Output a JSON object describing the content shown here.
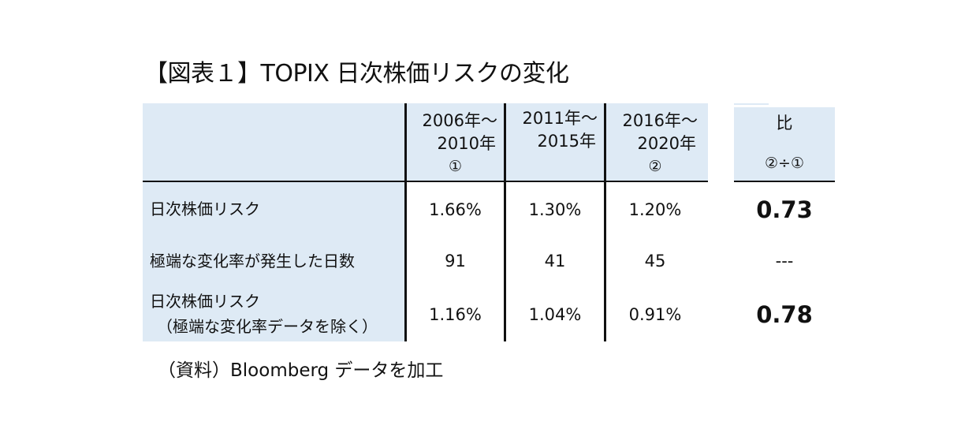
{
  "title": "【図表１】TOPIX 日次株価リスクの変化",
  "source": "（資料）Bloomberg データを加工",
  "columns": [
    {
      "line1": "2006年～",
      "line2": "2010年",
      "marker": "①"
    },
    {
      "line1": "2011年～",
      "line2": "2015年",
      "marker": ""
    },
    {
      "line1": "2016年～",
      "line2": "2020年",
      "marker": "②"
    }
  ],
  "ratio_header": {
    "label": "比",
    "formula": "②÷①"
  },
  "rows": [
    {
      "label": "日次株価リスク",
      "sublabel": "",
      "values": [
        "1.66%",
        "1.30%",
        "1.20%"
      ],
      "ratio": "0.73"
    },
    {
      "label": "極端な変化率が発生した日数",
      "sublabel": "",
      "values": [
        "91",
        "41",
        "45"
      ],
      "ratio": "---"
    },
    {
      "label": "日次株価リスク",
      "sublabel": "（極端な変化率データを除く）",
      "values": [
        "1.16%",
        "1.04%",
        "0.91%"
      ],
      "ratio": "0.78"
    }
  ]
}
